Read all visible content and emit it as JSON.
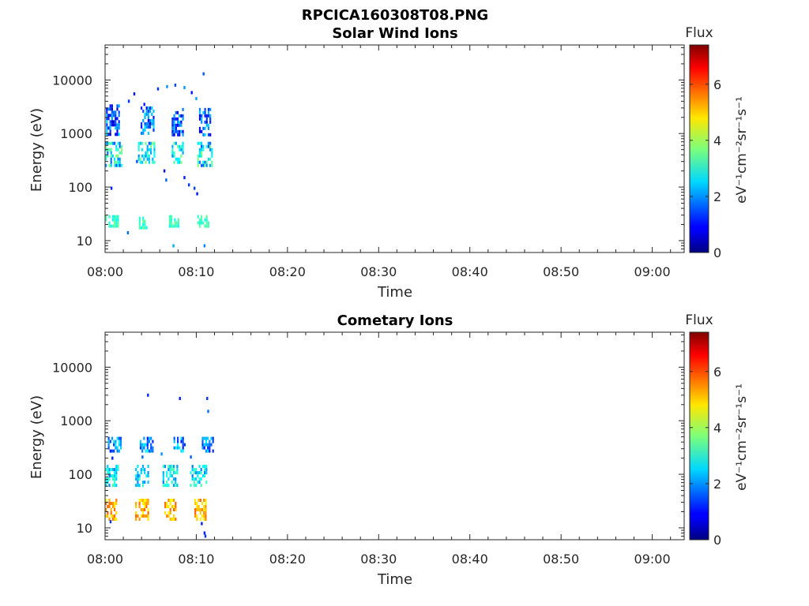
{
  "figure_title": "RPCICA160308T08.PNG",
  "colorbar": {
    "label": "Flux",
    "unit_text": "eV⁻¹cm⁻²sr⁻¹s⁻¹",
    "ticks": [
      "0",
      "2",
      "4",
      "6"
    ],
    "range": [
      0,
      7.4
    ],
    "colormap": "jet"
  },
  "chart_data": [
    {
      "type": "heatmap",
      "title": "Solar Wind Ions",
      "xlabel": "Time",
      "ylabel": "Energy (eV)",
      "x_ticks": [
        "08:00",
        "08:10",
        "08:20",
        "08:30",
        "08:40",
        "08:50",
        "09:00"
      ],
      "x_range_min": [
        0,
        63.5
      ],
      "y_ticks": [
        "10",
        "100",
        "1000",
        "10000"
      ],
      "y_range_eV": [
        6,
        45000
      ],
      "y_scale": "log",
      "data_extent_min": [
        0,
        11.8
      ],
      "blobs": [
        {
          "t": [
            0.0,
            1.8
          ],
          "e": [
            250,
            700
          ],
          "flux": [
            1.5,
            3.8
          ]
        },
        {
          "t": [
            3.6,
            5.4
          ],
          "e": [
            280,
            700
          ],
          "flux": [
            1.5,
            3.8
          ]
        },
        {
          "t": [
            7.3,
            8.5
          ],
          "e": [
            280,
            700
          ],
          "flux": [
            1.5,
            3.8
          ]
        },
        {
          "t": [
            10.1,
            11.7
          ],
          "e": [
            250,
            700
          ],
          "flux": [
            1.5,
            3.8
          ]
        },
        {
          "t": [
            0.1,
            1.6
          ],
          "e": [
            1000,
            3500
          ],
          "flux": [
            0.6,
            2.6
          ]
        },
        {
          "t": [
            3.9,
            5.4
          ],
          "e": [
            1000,
            3200
          ],
          "flux": [
            0.6,
            2.6
          ]
        },
        {
          "t": [
            7.3,
            8.6
          ],
          "e": [
            1000,
            3000
          ],
          "flux": [
            0.6,
            2.6
          ]
        },
        {
          "t": [
            10.3,
            11.5
          ],
          "e": [
            1000,
            3000
          ],
          "flux": [
            0.6,
            2.6
          ]
        },
        {
          "t": [
            0.0,
            1.4
          ],
          "e": [
            18,
            30
          ],
          "flux": [
            2.8,
            3.6
          ]
        },
        {
          "t": [
            3.7,
            4.6
          ],
          "e": [
            18,
            28
          ],
          "flux": [
            2.8,
            3.6
          ]
        },
        {
          "t": [
            7.0,
            8.0
          ],
          "e": [
            18,
            30
          ],
          "flux": [
            2.8,
            3.6
          ]
        },
        {
          "t": [
            10.1,
            11.3
          ],
          "e": [
            18,
            30
          ],
          "flux": [
            2.8,
            3.6
          ]
        }
      ],
      "spots": [
        [
          2.5,
          4000
        ],
        [
          3.1,
          5500
        ],
        [
          4.2,
          3500
        ],
        [
          5.7,
          6800
        ],
        [
          6.7,
          7500
        ],
        [
          7.6,
          8000
        ],
        [
          8.6,
          7200
        ],
        [
          9.4,
          5800
        ],
        [
          9.9,
          4500
        ],
        [
          10.7,
          13000
        ],
        [
          3.4,
          300
        ],
        [
          6.4,
          200
        ],
        [
          6.6,
          135
        ],
        [
          8.6,
          150
        ],
        [
          9.7,
          95
        ],
        [
          10.0,
          75
        ],
        [
          0.6,
          95
        ],
        [
          2.4,
          14
        ],
        [
          7.4,
          8
        ],
        [
          10.8,
          8
        ],
        [
          9.1,
          110
        ]
      ]
    },
    {
      "type": "heatmap",
      "title": "Cometary Ions",
      "xlabel": "Time",
      "ylabel": "Energy (eV)",
      "x_ticks": [
        "08:00",
        "08:10",
        "08:20",
        "08:30",
        "08:40",
        "08:50",
        "09:00"
      ],
      "x_range_min": [
        0,
        63.5
      ],
      "y_ticks": [
        "10",
        "100",
        "1000",
        "10000"
      ],
      "y_range_eV": [
        6,
        45000
      ],
      "y_scale": "log",
      "data_extent_min": [
        0,
        11.8
      ],
      "blobs": [
        {
          "t": [
            0.0,
            1.3
          ],
          "e": [
            15,
            35
          ],
          "flux": [
            4.6,
            5.8
          ]
        },
        {
          "t": [
            3.3,
            4.7
          ],
          "e": [
            15,
            35
          ],
          "flux": [
            4.6,
            5.8
          ]
        },
        {
          "t": [
            6.5,
            7.8
          ],
          "e": [
            15,
            35
          ],
          "flux": [
            4.6,
            5.8
          ]
        },
        {
          "t": [
            9.8,
            11.1
          ],
          "e": [
            15,
            35
          ],
          "flux": [
            4.6,
            5.8
          ]
        },
        {
          "t": [
            0.0,
            1.4
          ],
          "e": [
            60,
            150
          ],
          "flux": [
            1.8,
            3.4
          ]
        },
        {
          "t": [
            3.3,
            4.7
          ],
          "e": [
            60,
            150
          ],
          "flux": [
            1.8,
            3.4
          ]
        },
        {
          "t": [
            6.3,
            7.9
          ],
          "e": [
            60,
            150
          ],
          "flux": [
            1.8,
            3.4
          ]
        },
        {
          "t": [
            9.3,
            11.1
          ],
          "e": [
            60,
            150
          ],
          "flux": [
            1.8,
            3.4
          ]
        },
        {
          "t": [
            0.3,
            1.8
          ],
          "e": [
            280,
            500
          ],
          "flux": [
            1.0,
            2.8
          ]
        },
        {
          "t": [
            3.8,
            5.3
          ],
          "e": [
            280,
            500
          ],
          "flux": [
            1.0,
            2.8
          ]
        },
        {
          "t": [
            7.5,
            8.8
          ],
          "e": [
            280,
            500
          ],
          "flux": [
            1.0,
            2.8
          ]
        },
        {
          "t": [
            10.6,
            11.8
          ],
          "e": [
            280,
            500
          ],
          "flux": [
            1.0,
            2.8
          ]
        }
      ],
      "spots": [
        [
          4.6,
          3000
        ],
        [
          8.1,
          2600
        ],
        [
          11.1,
          2600
        ],
        [
          11.2,
          1500
        ],
        [
          0.7,
          200
        ],
        [
          4.0,
          210
        ],
        [
          6.1,
          240
        ],
        [
          9.3,
          210
        ],
        [
          10.8,
          8
        ],
        [
          10.5,
          12
        ],
        [
          0.5,
          13
        ],
        [
          10.9,
          7
        ]
      ]
    }
  ]
}
